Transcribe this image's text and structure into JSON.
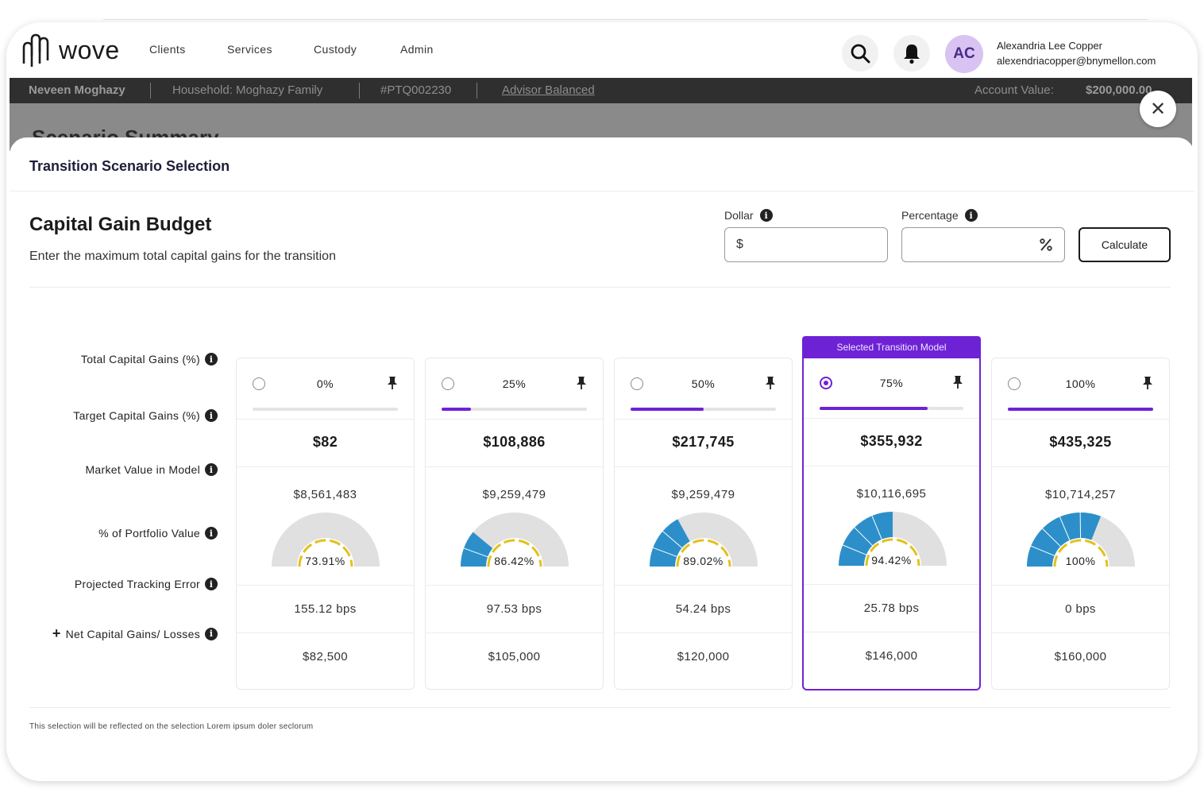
{
  "app": {
    "brand": "wove"
  },
  "nav": {
    "items": [
      "Clients",
      "Services",
      "Custody",
      "Admin"
    ]
  },
  "user": {
    "initials": "AC",
    "name": "Alexandria Lee Copper",
    "email": "alexendriacopper@bnymellon.com"
  },
  "account_bar": {
    "client": "Neveen Moghazy",
    "household": "Household: Moghazy Family",
    "account_id": "#PTQ002230",
    "model": "Advisor Balanced",
    "value_label": "Account Value:",
    "value": "$200,000.00"
  },
  "background_page": {
    "title": "Scenario Summary"
  },
  "modal": {
    "title": "Transition Scenario Selection",
    "budget_title": "Capital Gain Budget",
    "budget_subtitle": "Enter the maximum total capital gains for the transition",
    "dollar_label": "Dollar",
    "dollar_prefix": "$",
    "percentage_label": "Percentage",
    "calculate_label": "Calculate",
    "selected_banner": "Selected Transition Model",
    "footnote": "This selection will be reflected on the selection Lorem ipsum doler seclorum"
  },
  "row_labels": {
    "total_cg": "Total Capital Gains (%)",
    "target_cg": "Target Capital Gains (%)",
    "market_value": "Market Value in Model",
    "portfolio_pct": "% of Portfolio Value",
    "tracking_error": "Projected Tracking Error",
    "net_cg": "Net Capital Gains/ Losses",
    "net_cg_prefix": "+"
  },
  "scenarios": [
    {
      "pct_label": "0%",
      "progress": 0.0,
      "target": "$82",
      "market_value": "$8,561,483",
      "portfolio_label": "73.91%",
      "portfolio_value": 0.0,
      "tracking": "155.12 bps",
      "net": "$82,500",
      "selected": false
    },
    {
      "pct_label": "25%",
      "progress": 0.2,
      "target": "$108,886",
      "market_value": "$9,259,479",
      "portfolio_label": "86.42%",
      "portfolio_value": 0.22,
      "tracking": "97.53 bps",
      "net": "$105,000",
      "selected": false
    },
    {
      "pct_label": "50%",
      "progress": 0.5,
      "target": "$217,745",
      "market_value": "$9,259,479",
      "portfolio_label": "89.02%",
      "portfolio_value": 0.34,
      "tracking": "54.24 bps",
      "net": "$120,000",
      "selected": false
    },
    {
      "pct_label": "75%",
      "progress": 0.75,
      "target": "$355,932",
      "market_value": "$10,116,695",
      "portfolio_label": "94.42%",
      "portfolio_value": 0.5,
      "tracking": "25.78 bps",
      "net": "$146,000",
      "selected": true
    },
    {
      "pct_label": "100%",
      "progress": 1.0,
      "target": "$435,325",
      "market_value": "$10,714,257",
      "portfolio_label": "100%",
      "portfolio_value": 0.62,
      "tracking": "0 bps",
      "net": "$160,000",
      "selected": false
    }
  ],
  "colors": {
    "accent": "#6e22d6",
    "gauge_fill": "#2c8fca",
    "gauge_track": "#e0e0e0",
    "gauge_ring": "#e2c21a"
  }
}
